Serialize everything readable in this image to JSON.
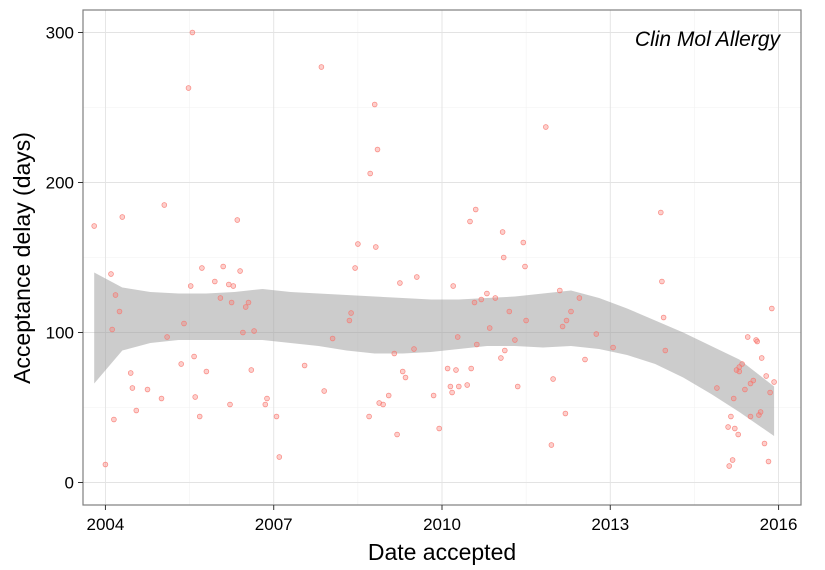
{
  "chart_data": {
    "type": "scatter",
    "annotation": "Clin Mol Allergy",
    "xlabel": "Date accepted",
    "ylabel": "Acceptance delay (days)",
    "xlim": [
      2003.6,
      2016.4
    ],
    "ylim": [
      -15,
      315
    ],
    "x_ticks": [
      2004,
      2007,
      2010,
      2013,
      2016
    ],
    "y_ticks": [
      0,
      100,
      200,
      300
    ],
    "grid": true,
    "point_color": "#F8766D",
    "band_color": "#999999",
    "points": [
      [
        2003.8,
        171
      ],
      [
        2004.0,
        12
      ],
      [
        2004.1,
        139
      ],
      [
        2004.12,
        102
      ],
      [
        2004.15,
        42
      ],
      [
        2004.18,
        125
      ],
      [
        2004.25,
        114
      ],
      [
        2004.3,
        177
      ],
      [
        2004.45,
        73
      ],
      [
        2004.48,
        63
      ],
      [
        2004.55,
        48
      ],
      [
        2004.75,
        62
      ],
      [
        2005.0,
        56
      ],
      [
        2005.05,
        185
      ],
      [
        2005.1,
        97
      ],
      [
        2005.35,
        79
      ],
      [
        2005.4,
        106
      ],
      [
        2005.48,
        263
      ],
      [
        2005.52,
        131
      ],
      [
        2005.55,
        300
      ],
      [
        2005.58,
        84
      ],
      [
        2005.6,
        57
      ],
      [
        2005.68,
        44
      ],
      [
        2005.72,
        143
      ],
      [
        2005.8,
        74
      ],
      [
        2005.95,
        134
      ],
      [
        2006.05,
        123
      ],
      [
        2006.1,
        144
      ],
      [
        2006.2,
        132
      ],
      [
        2006.25,
        120
      ],
      [
        2006.22,
        52
      ],
      [
        2006.28,
        131
      ],
      [
        2006.35,
        175
      ],
      [
        2006.4,
        141
      ],
      [
        2006.45,
        100
      ],
      [
        2006.5,
        117
      ],
      [
        2006.55,
        120
      ],
      [
        2006.6,
        75
      ],
      [
        2006.65,
        101
      ],
      [
        2006.85,
        52
      ],
      [
        2006.88,
        56
      ],
      [
        2007.05,
        44
      ],
      [
        2007.1,
        17
      ],
      [
        2007.55,
        78
      ],
      [
        2007.85,
        277
      ],
      [
        2007.9,
        61
      ],
      [
        2008.05,
        96
      ],
      [
        2008.35,
        108
      ],
      [
        2008.38,
        113
      ],
      [
        2008.45,
        143
      ],
      [
        2008.5,
        159
      ],
      [
        2008.7,
        44
      ],
      [
        2008.72,
        206
      ],
      [
        2008.8,
        252
      ],
      [
        2008.82,
        157
      ],
      [
        2008.85,
        222
      ],
      [
        2008.88,
        53
      ],
      [
        2008.95,
        52
      ],
      [
        2009.05,
        58
      ],
      [
        2009.15,
        86
      ],
      [
        2009.2,
        32
      ],
      [
        2009.25,
        133
      ],
      [
        2009.3,
        74
      ],
      [
        2009.35,
        70
      ],
      [
        2009.5,
        89
      ],
      [
        2009.55,
        137
      ],
      [
        2009.85,
        58
      ],
      [
        2009.95,
        36
      ],
      [
        2010.1,
        76
      ],
      [
        2010.15,
        64
      ],
      [
        2010.18,
        60
      ],
      [
        2010.2,
        131
      ],
      [
        2010.25,
        75
      ],
      [
        2010.3,
        64
      ],
      [
        2010.28,
        97
      ],
      [
        2010.45,
        65
      ],
      [
        2010.5,
        174
      ],
      [
        2010.52,
        76
      ],
      [
        2010.58,
        120
      ],
      [
        2010.6,
        182
      ],
      [
        2010.62,
        92
      ],
      [
        2010.7,
        122
      ],
      [
        2010.8,
        126
      ],
      [
        2010.85,
        103
      ],
      [
        2010.95,
        123
      ],
      [
        2011.05,
        83
      ],
      [
        2011.08,
        167
      ],
      [
        2011.1,
        150
      ],
      [
        2011.12,
        88
      ],
      [
        2011.2,
        114
      ],
      [
        2011.3,
        95
      ],
      [
        2011.35,
        64
      ],
      [
        2011.45,
        160
      ],
      [
        2011.48,
        144
      ],
      [
        2011.5,
        108
      ],
      [
        2011.85,
        237
      ],
      [
        2011.95,
        25
      ],
      [
        2011.98,
        69
      ],
      [
        2012.1,
        128
      ],
      [
        2012.15,
        104
      ],
      [
        2012.2,
        46
      ],
      [
        2012.22,
        108
      ],
      [
        2012.3,
        114
      ],
      [
        2012.45,
        123
      ],
      [
        2012.55,
        82
      ],
      [
        2012.75,
        99
      ],
      [
        2013.05,
        90
      ],
      [
        2013.9,
        180
      ],
      [
        2013.92,
        134
      ],
      [
        2013.95,
        110
      ],
      [
        2013.98,
        88
      ],
      [
        2014.9,
        63
      ],
      [
        2015.1,
        37
      ],
      [
        2015.12,
        11
      ],
      [
        2015.15,
        44
      ],
      [
        2015.18,
        15
      ],
      [
        2015.2,
        56
      ],
      [
        2015.22,
        36
      ],
      [
        2015.25,
        75
      ],
      [
        2015.28,
        32
      ],
      [
        2015.3,
        77
      ],
      [
        2015.35,
        79
      ],
      [
        2015.4,
        62
      ],
      [
        2015.45,
        97
      ],
      [
        2015.5,
        66
      ],
      [
        2015.55,
        68
      ],
      [
        2015.6,
        95
      ],
      [
        2015.62,
        94
      ],
      [
        2015.65,
        45
      ],
      [
        2015.68,
        47
      ],
      [
        2015.7,
        83
      ],
      [
        2015.75,
        26
      ],
      [
        2015.78,
        71
      ],
      [
        2015.82,
        14
      ],
      [
        2015.85,
        60
      ],
      [
        2015.88,
        116
      ],
      [
        2015.92,
        67
      ],
      [
        2015.5,
        44
      ],
      [
        2015.3,
        74
      ]
    ],
    "smooth": {
      "x": [
        2003.8,
        2004.3,
        2004.8,
        2005.3,
        2005.8,
        2006.3,
        2006.8,
        2007.3,
        2007.8,
        2008.3,
        2008.8,
        2009.3,
        2009.8,
        2010.3,
        2010.8,
        2011.3,
        2011.8,
        2012.3,
        2012.8,
        2013.3,
        2013.8,
        2014.3,
        2014.8,
        2015.3,
        2015.92
      ],
      "fit": [
        103,
        110,
        111,
        110,
        109,
        109,
        110,
        109,
        108,
        106,
        105,
        105,
        104,
        104,
        106,
        107,
        108,
        109,
        106,
        101,
        94,
        85,
        75,
        65,
        47
      ],
      "lower": [
        66,
        88,
        93,
        95,
        95,
        95,
        95,
        93,
        91,
        88,
        86,
        86,
        87,
        89,
        91,
        91,
        90,
        91,
        89,
        85,
        79,
        70,
        59,
        47,
        31
      ],
      "upper": [
        140,
        130,
        127,
        126,
        126,
        127,
        129,
        127,
        126,
        125,
        124,
        123,
        122,
        122,
        123,
        124,
        126,
        128,
        123,
        116,
        108,
        100,
        91,
        82,
        64
      ]
    }
  }
}
